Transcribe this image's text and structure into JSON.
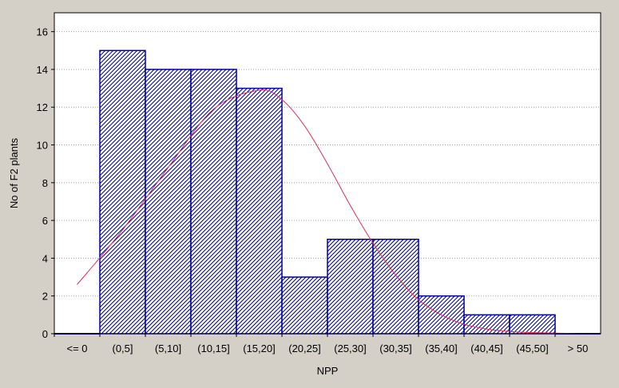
{
  "chart_data": {
    "type": "bar",
    "title": "",
    "xlabel": "NPP",
    "ylabel": "No of F2 plants",
    "categories": [
      "<= 0",
      "(0,5]",
      "(5,10]",
      "(10,15]",
      "(15,20]",
      "(20,25]",
      "(25,30]",
      "(30,35]",
      "(35,40]",
      "(40,45]",
      "(45,50]",
      "> 50"
    ],
    "values": [
      0,
      15,
      14,
      14,
      13,
      3,
      5,
      5,
      2,
      1,
      1,
      0
    ],
    "ylim": [
      0,
      17
    ],
    "yticks": [
      0,
      2,
      4,
      6,
      8,
      10,
      12,
      14,
      16
    ],
    "grid": true,
    "bar_style": "diagonal hatch",
    "fitted_curve": {
      "type": "normal",
      "x": [
        -2.5,
        2.5,
        7.5,
        12.5,
        17.5,
        20,
        22.5,
        25,
        27.5,
        30,
        32.5,
        35,
        37.5,
        40,
        42.5,
        45,
        47.5,
        50,
        52.5,
        55
      ],
      "y": [
        2.6,
        5.5,
        8.8,
        11.9,
        12.9,
        12.4,
        11.0,
        9.0,
        6.8,
        4.8,
        3.1,
        1.8,
        1.0,
        0.5,
        0.25,
        0.12,
        0.06,
        0.03,
        0.01,
        0.005
      ]
    },
    "colors": {
      "bar_stroke": "#0000a0",
      "hatch": "#000080",
      "bar_fill": "#ffffff",
      "curve": "#e0305a",
      "plot_background": "#ffffff",
      "figure_background": "#d4d0c8",
      "grid": "#a0a0a0"
    }
  }
}
